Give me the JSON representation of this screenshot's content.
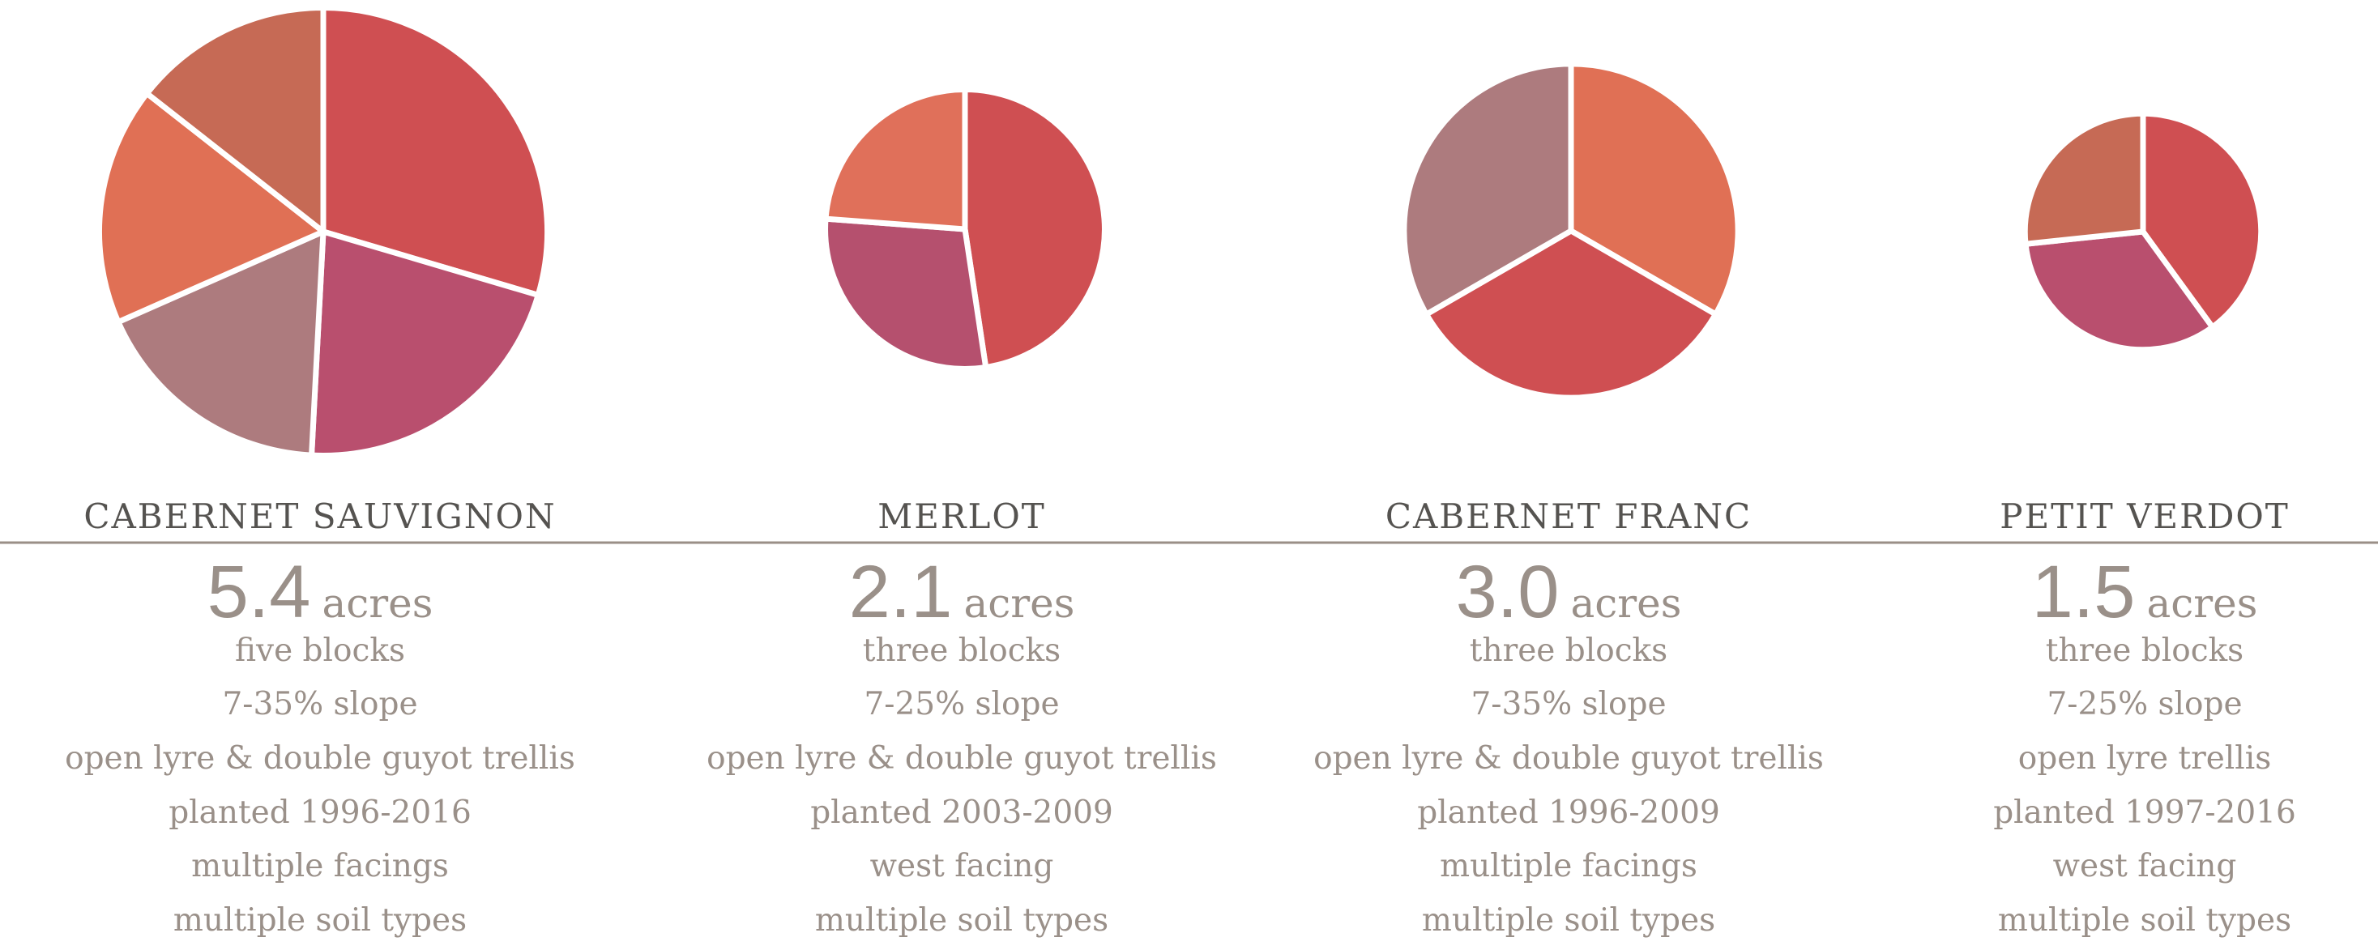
{
  "chart_data": [
    {
      "type": "pie",
      "title": "CABERNET SAUVIGNON",
      "acreage": 5.4,
      "acreage_label": "5.4",
      "unit": "acres",
      "details": [
        "five blocks",
        "7-35% slope",
        "open lyre & double guyot trellis",
        "planted 1996-2016",
        "multiple facings",
        "multiple soil types"
      ],
      "values": [
        1.6,
        1.15,
        0.95,
        0.93,
        0.78
      ],
      "colors": [
        "#cf4f52",
        "#b94f6e",
        "#ad7b7e",
        "#e07055",
        "#c66a55"
      ]
    },
    {
      "type": "pie",
      "title": "MERLOT",
      "acreage": 2.1,
      "acreage_label": "2.1",
      "unit": "acres",
      "details": [
        "three blocks",
        "7-25% slope",
        "open lyre & double guyot trellis",
        "planted 2003-2009",
        "west facing",
        "multiple soil types"
      ],
      "values": [
        1.0,
        0.6,
        0.5
      ],
      "colors": [
        "#cf4f52",
        "#b5506e",
        "#e0705a"
      ]
    },
    {
      "type": "pie",
      "title": "CABERNET FRANC",
      "acreage": 3.0,
      "acreage_label": "3.0",
      "unit": "acres",
      "details": [
        "three blocks",
        "7-35% slope",
        "open lyre & double guyot trellis",
        "planted 1996-2009",
        "multiple facings",
        "multiple soil types"
      ],
      "values": [
        1.0,
        1.0,
        1.0
      ],
      "colors": [
        "#e07055",
        "#cf4f52",
        "#ad7b7e"
      ]
    },
    {
      "type": "pie",
      "title": "PETIT VERDOT",
      "acreage": 1.5,
      "acreage_label": "1.5",
      "unit": "acres",
      "details": [
        "three blocks",
        "7-25% slope",
        "open lyre trellis",
        "planted 1997-2016",
        "west facing",
        "multiple soil types"
      ],
      "values": [
        0.6,
        0.5,
        0.4
      ],
      "colors": [
        "#cf4f52",
        "#b94f6e",
        "#c66a55"
      ]
    }
  ]
}
